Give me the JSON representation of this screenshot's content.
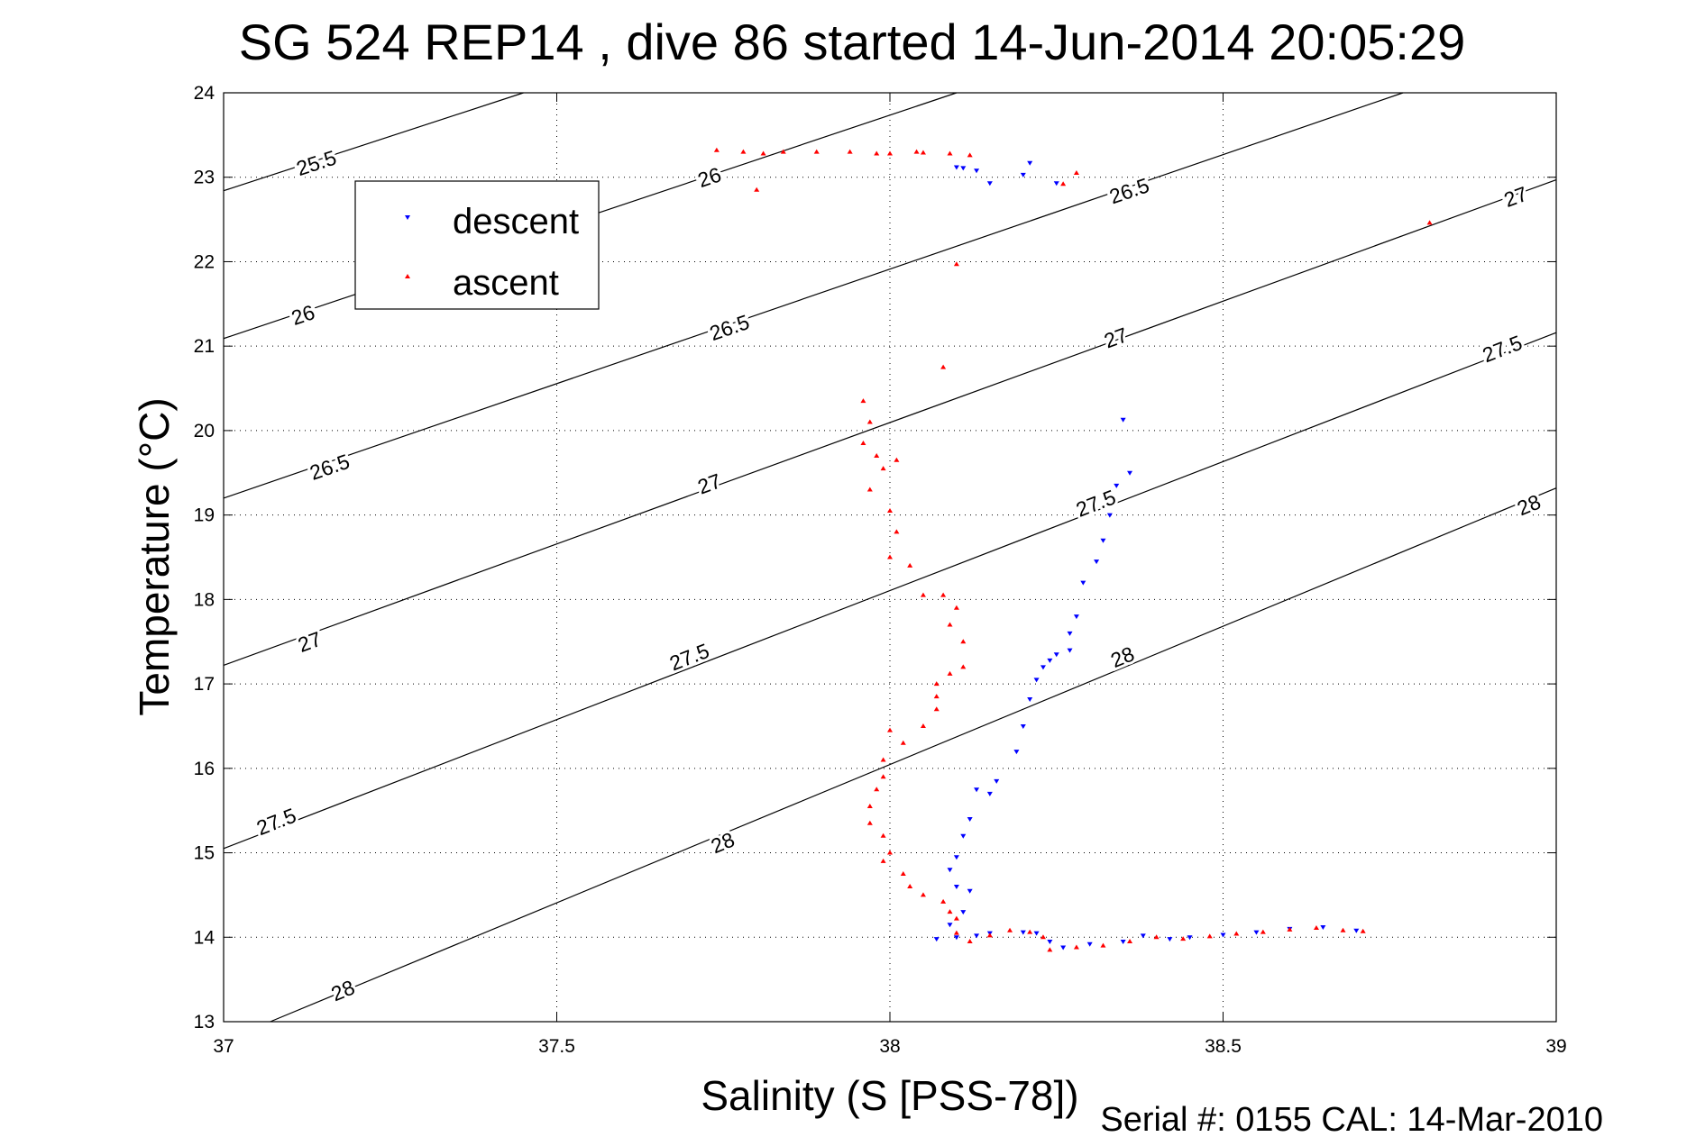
{
  "chart_data": {
    "type": "scatter",
    "title": "SG 524   REP14  , dive 86 started 14-Jun-2014 20:05:29",
    "xlabel": "Salinity (S [PSS-78])",
    "ylabel": "Temperature (°C)",
    "footer": "Serial #: 0155  CAL: 14-Mar-2010",
    "xlim": [
      37,
      39
    ],
    "ylim": [
      13,
      24
    ],
    "x_ticks": [
      "37",
      "37.5",
      "38",
      "38.5",
      "39"
    ],
    "y_ticks": [
      "13",
      "14",
      "15",
      "16",
      "17",
      "18",
      "19",
      "20",
      "21",
      "22",
      "23",
      "24"
    ],
    "grid": true,
    "legend_position": "top-left",
    "density_contours": [
      {
        "label": "25.5",
        "color": "#000000",
        "points": [
          [
            37,
            22.84
          ],
          [
            37.45,
            24
          ]
        ],
        "label_positions": [
          [
            37.14,
            23.15
          ]
        ]
      },
      {
        "label": "26",
        "color": "#000000",
        "points": [
          [
            37,
            21.09
          ],
          [
            38.1,
            24
          ]
        ],
        "label_positions": [
          [
            37.12,
            21.35
          ],
          [
            37.73,
            22.98
          ]
        ]
      },
      {
        "label": "26.5",
        "color": "#000000",
        "points": [
          [
            37,
            19.2
          ],
          [
            38.77,
            24
          ]
        ],
        "label_positions": [
          [
            37.16,
            19.55
          ],
          [
            37.76,
            21.2
          ],
          [
            38.36,
            22.82
          ]
        ]
      },
      {
        "label": "27",
        "color": "#000000",
        "points": [
          [
            37,
            17.22
          ],
          [
            39,
            22.97
          ]
        ],
        "label_positions": [
          [
            37.13,
            17.48
          ],
          [
            37.73,
            19.35
          ],
          [
            38.34,
            21.08
          ],
          [
            38.94,
            22.75
          ]
        ]
      },
      {
        "label": "27.5",
        "color": "#000000",
        "points": [
          [
            37,
            15.05
          ],
          [
            39,
            21.16
          ]
        ],
        "label_positions": [
          [
            37.08,
            15.35
          ],
          [
            37.7,
            17.3
          ],
          [
            38.31,
            19.12
          ],
          [
            38.92,
            20.95
          ]
        ]
      },
      {
        "label": "28",
        "color": "#000000",
        "points": [
          [
            37.07,
            13
          ],
          [
            39,
            19.32
          ]
        ],
        "label_positions": [
          [
            37.18,
            13.35
          ],
          [
            37.75,
            15.1
          ],
          [
            38.35,
            17.3
          ],
          [
            38.96,
            19.1
          ]
        ]
      }
    ],
    "series": [
      {
        "name": "descent",
        "color": "#0000ff",
        "marker": "triangle-down",
        "points": [
          [
            38.1,
            23.12
          ],
          [
            38.11,
            23.11
          ],
          [
            38.13,
            23.08
          ],
          [
            38.15,
            22.93
          ],
          [
            38.2,
            23.03
          ],
          [
            38.21,
            23.17
          ],
          [
            38.25,
            22.93
          ],
          [
            38.35,
            20.13
          ],
          [
            38.36,
            19.5
          ],
          [
            38.34,
            19.35
          ],
          [
            38.33,
            19.0
          ],
          [
            38.32,
            18.7
          ],
          [
            38.31,
            18.45
          ],
          [
            38.29,
            18.2
          ],
          [
            38.28,
            17.8
          ],
          [
            38.27,
            17.6
          ],
          [
            38.27,
            17.4
          ],
          [
            38.25,
            17.35
          ],
          [
            38.24,
            17.28
          ],
          [
            38.23,
            17.2
          ],
          [
            38.22,
            17.05
          ],
          [
            38.21,
            16.82
          ],
          [
            38.2,
            16.5
          ],
          [
            38.19,
            16.2
          ],
          [
            38.16,
            15.85
          ],
          [
            38.15,
            15.7
          ],
          [
            38.13,
            15.75
          ],
          [
            38.12,
            15.4
          ],
          [
            38.11,
            15.2
          ],
          [
            38.1,
            14.95
          ],
          [
            38.09,
            14.8
          ],
          [
            38.1,
            14.6
          ],
          [
            38.12,
            14.55
          ],
          [
            38.11,
            14.3
          ],
          [
            38.09,
            14.15
          ],
          [
            38.07,
            13.98
          ],
          [
            38.1,
            14.0
          ],
          [
            38.13,
            14.02
          ],
          [
            38.15,
            14.05
          ],
          [
            38.2,
            14.06
          ],
          [
            38.22,
            14.05
          ],
          [
            38.24,
            13.95
          ],
          [
            38.26,
            13.88
          ],
          [
            38.3,
            13.92
          ],
          [
            38.35,
            13.95
          ],
          [
            38.38,
            14.02
          ],
          [
            38.42,
            13.98
          ],
          [
            38.45,
            14.0
          ],
          [
            38.5,
            14.03
          ],
          [
            38.55,
            14.06
          ],
          [
            38.6,
            14.1
          ],
          [
            38.65,
            14.12
          ],
          [
            38.7,
            14.08
          ]
        ]
      },
      {
        "name": "ascent",
        "color": "#ff0000",
        "marker": "triangle-up",
        "points": [
          [
            37.74,
            23.32
          ],
          [
            37.78,
            23.3
          ],
          [
            37.81,
            23.28
          ],
          [
            37.84,
            23.3
          ],
          [
            37.89,
            23.3
          ],
          [
            37.94,
            23.3
          ],
          [
            37.98,
            23.28
          ],
          [
            38.0,
            23.28
          ],
          [
            38.04,
            23.3
          ],
          [
            38.05,
            23.29
          ],
          [
            38.09,
            23.28
          ],
          [
            38.12,
            23.26
          ],
          [
            37.8,
            22.85
          ],
          [
            38.1,
            21.97
          ],
          [
            38.26,
            22.92
          ],
          [
            38.28,
            23.05
          ],
          [
            38.81,
            22.46
          ],
          [
            38.08,
            20.75
          ],
          [
            37.96,
            20.35
          ],
          [
            37.97,
            20.1
          ],
          [
            37.96,
            19.85
          ],
          [
            37.98,
            19.7
          ],
          [
            37.99,
            19.55
          ],
          [
            38.01,
            19.65
          ],
          [
            37.97,
            19.3
          ],
          [
            38.0,
            19.05
          ],
          [
            38.01,
            18.8
          ],
          [
            38.0,
            18.5
          ],
          [
            38.03,
            18.4
          ],
          [
            38.05,
            18.05
          ],
          [
            38.08,
            18.05
          ],
          [
            38.1,
            17.9
          ],
          [
            38.09,
            17.7
          ],
          [
            38.11,
            17.5
          ],
          [
            38.11,
            17.2
          ],
          [
            38.09,
            17.12
          ],
          [
            38.07,
            17.0
          ],
          [
            38.07,
            16.85
          ],
          [
            38.07,
            16.7
          ],
          [
            38.05,
            16.5
          ],
          [
            38.0,
            16.45
          ],
          [
            38.02,
            16.3
          ],
          [
            37.99,
            16.1
          ],
          [
            37.99,
            15.9
          ],
          [
            37.98,
            15.75
          ],
          [
            37.97,
            15.55
          ],
          [
            37.97,
            15.35
          ],
          [
            37.99,
            15.2
          ],
          [
            38.0,
            15.0
          ],
          [
            37.99,
            14.9
          ],
          [
            38.02,
            14.75
          ],
          [
            38.03,
            14.6
          ],
          [
            38.05,
            14.5
          ],
          [
            38.08,
            14.42
          ],
          [
            38.09,
            14.3
          ],
          [
            38.1,
            14.22
          ],
          [
            38.1,
            14.05
          ],
          [
            38.12,
            13.95
          ],
          [
            38.15,
            14.02
          ],
          [
            38.18,
            14.08
          ],
          [
            38.21,
            14.06
          ],
          [
            38.23,
            14.0
          ],
          [
            38.24,
            13.85
          ],
          [
            38.28,
            13.88
          ],
          [
            38.32,
            13.9
          ],
          [
            38.36,
            13.95
          ],
          [
            38.4,
            14.0
          ],
          [
            38.44,
            13.98
          ],
          [
            38.48,
            14.01
          ],
          [
            38.52,
            14.04
          ],
          [
            38.56,
            14.06
          ],
          [
            38.6,
            14.09
          ],
          [
            38.64,
            14.11
          ],
          [
            38.68,
            14.08
          ],
          [
            38.71,
            14.07
          ]
        ]
      }
    ]
  }
}
